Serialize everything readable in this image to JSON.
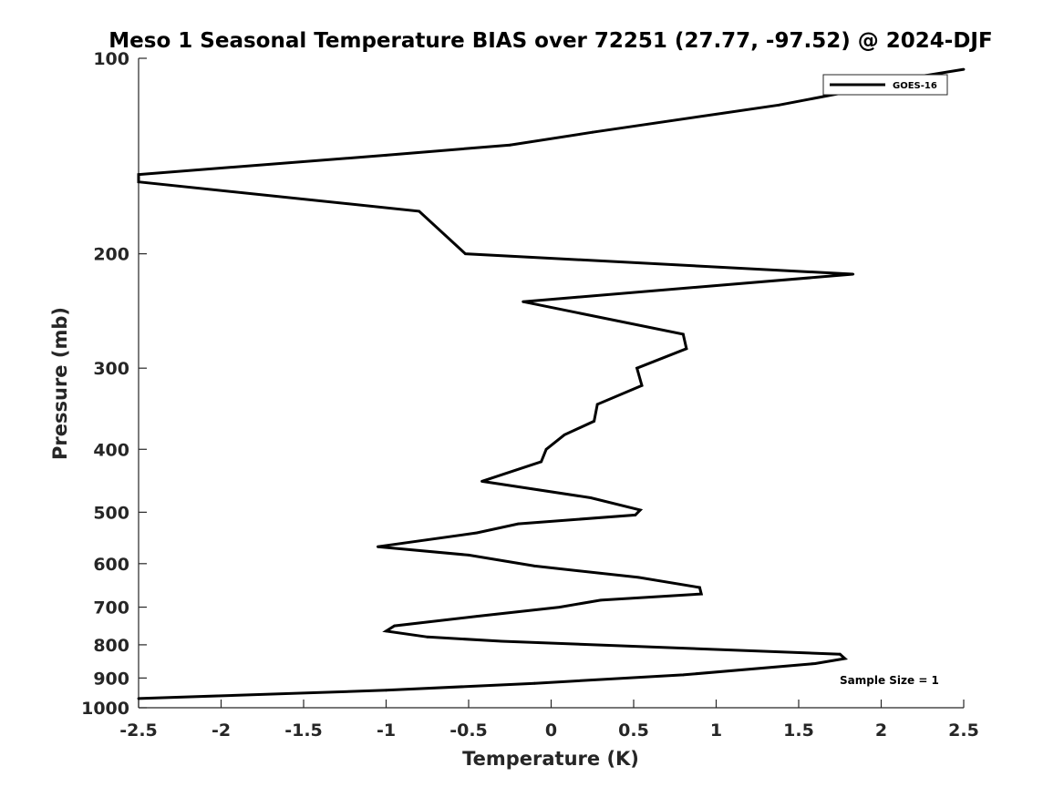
{
  "chart_data": {
    "type": "line",
    "title": "Meso 1 Seasonal Temperature BIAS over 72251 (27.77, -97.52) @ 2024-DJF",
    "xlabel": "Temperature (K)",
    "ylabel": "Pressure (mb)",
    "xlim": [
      -2.5,
      2.5
    ],
    "ylim": [
      100,
      1000
    ],
    "yscale": "log",
    "yreversed": true,
    "grid": false,
    "legend_position": "top-right",
    "xticks": [
      "-2.5",
      "-2",
      "-1.5",
      "-1",
      "-0.5",
      "0",
      "0.5",
      "1",
      "1.5",
      "2",
      "2.5"
    ],
    "yticks": [
      "100",
      "200",
      "300",
      "400",
      "500",
      "600",
      "700",
      "800",
      "900",
      "1000"
    ],
    "series": [
      {
        "name": "GOES-16",
        "color": "#000000",
        "points": [
          {
            "t": 2.5,
            "p": 104
          },
          {
            "t": 2.1,
            "p": 108
          },
          {
            "t": 1.85,
            "p": 112
          },
          {
            "t": 1.38,
            "p": 118
          },
          {
            "t": 0.25,
            "p": 130
          },
          {
            "t": -0.25,
            "p": 136
          },
          {
            "t": -1.0,
            "p": 141
          },
          {
            "t": -2.5,
            "p": 151
          },
          {
            "t": -2.5,
            "p": 155
          },
          {
            "t": -0.8,
            "p": 172
          },
          {
            "t": -0.52,
            "p": 200
          },
          {
            "t": 1.83,
            "p": 215
          },
          {
            "t": -0.17,
            "p": 237
          },
          {
            "t": 0.8,
            "p": 266
          },
          {
            "t": 0.82,
            "p": 280
          },
          {
            "t": 0.52,
            "p": 300
          },
          {
            "t": 0.55,
            "p": 319
          },
          {
            "t": 0.28,
            "p": 341
          },
          {
            "t": 0.26,
            "p": 362
          },
          {
            "t": 0.08,
            "p": 380
          },
          {
            "t": -0.03,
            "p": 400
          },
          {
            "t": -0.06,
            "p": 418
          },
          {
            "t": -0.42,
            "p": 448
          },
          {
            "t": 0.24,
            "p": 475
          },
          {
            "t": 0.54,
            "p": 496
          },
          {
            "t": 0.51,
            "p": 505
          },
          {
            "t": -0.2,
            "p": 521
          },
          {
            "t": -0.45,
            "p": 538
          },
          {
            "t": -1.05,
            "p": 565
          },
          {
            "t": -0.5,
            "p": 582
          },
          {
            "t": -0.1,
            "p": 605
          },
          {
            "t": 0.53,
            "p": 630
          },
          {
            "t": 0.9,
            "p": 653
          },
          {
            "t": 0.91,
            "p": 668
          },
          {
            "t": 0.3,
            "p": 683
          },
          {
            "t": 0.05,
            "p": 700
          },
          {
            "t": -0.45,
            "p": 723
          },
          {
            "t": -0.95,
            "p": 748
          },
          {
            "t": -1.0,
            "p": 762
          },
          {
            "t": -0.75,
            "p": 778
          },
          {
            "t": -0.3,
            "p": 790
          },
          {
            "t": 1.75,
            "p": 827
          },
          {
            "t": 1.78,
            "p": 840
          },
          {
            "t": 1.6,
            "p": 855
          },
          {
            "t": 0.8,
            "p": 890
          },
          {
            "t": -0.1,
            "p": 917
          },
          {
            "t": -1.0,
            "p": 940
          },
          {
            "t": -2.5,
            "p": 968
          }
        ]
      }
    ],
    "annotations": [
      {
        "text": "Sample Size = 1"
      }
    ]
  }
}
